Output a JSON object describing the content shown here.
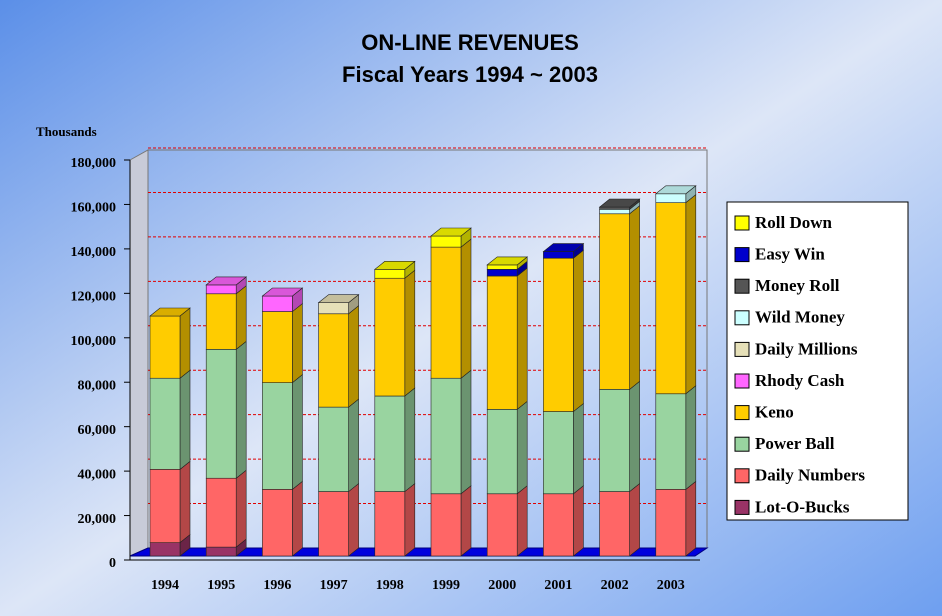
{
  "chart_data": {
    "type": "bar",
    "stacked": true,
    "title": "ON-LINE REVENUES",
    "subtitle": "Fiscal Years 1994 ~ 2003",
    "y_label": "Thousands",
    "categories": [
      "1994",
      "1995",
      "1996",
      "1997",
      "1998",
      "1999",
      "2000",
      "2001",
      "2002",
      "2003"
    ],
    "ylim": [
      0,
      180000
    ],
    "yticks": [
      0,
      {
        "value": 20000,
        "label": "20,000"
      },
      {
        "value": 40000,
        "label": "40,000"
      },
      {
        "value": 60000,
        "label": "60,000"
      },
      {
        "value": 80000,
        "label": "80,000"
      },
      {
        "value": 100000,
        "label": "100,000"
      },
      {
        "value": 120000,
        "label": "120,000"
      },
      {
        "value": 140000,
        "label": "140,000"
      },
      {
        "value": 160000,
        "label": "160,000"
      },
      {
        "value": 180000,
        "label": "180,000"
      }
    ],
    "grid": true,
    "legend": "right",
    "series": [
      {
        "name": "Lot-O-Bucks",
        "color": "#993366",
        "values": [
          6000,
          4000,
          0,
          0,
          0,
          0,
          0,
          0,
          0,
          0
        ]
      },
      {
        "name": "Daily Numbers",
        "color": "#ff6666",
        "values": [
          33000,
          31000,
          30000,
          29000,
          29000,
          28000,
          28000,
          28000,
          29000,
          30000
        ]
      },
      {
        "name": "Power Ball",
        "color": "#99d4a0",
        "values": [
          41000,
          58000,
          48000,
          38000,
          43000,
          52000,
          38000,
          37000,
          46000,
          43000
        ]
      },
      {
        "name": "Keno",
        "color": "#ffcc00",
        "values": [
          28000,
          25000,
          32000,
          42000,
          53000,
          59000,
          60000,
          69000,
          79000,
          86000
        ]
      },
      {
        "name": "Rhody Cash",
        "color": "#ff66ff",
        "values": [
          0,
          4000,
          7000,
          0,
          0,
          0,
          0,
          0,
          0,
          0
        ]
      },
      {
        "name": "Daily Millions",
        "color": "#e6e0b8",
        "values": [
          0,
          0,
          0,
          5000,
          0,
          0,
          0,
          0,
          0,
          0
        ]
      },
      {
        "name": "Wild Money",
        "color": "#ccffff",
        "values": [
          0,
          0,
          0,
          0,
          0,
          0,
          0,
          0,
          2000,
          4000
        ]
      },
      {
        "name": "Money Roll",
        "color": "#555555",
        "values": [
          0,
          0,
          0,
          0,
          0,
          0,
          0,
          0,
          1000,
          0
        ]
      },
      {
        "name": "Easy Win",
        "color": "#0000cc",
        "values": [
          0,
          0,
          0,
          0,
          0,
          0,
          3000,
          3000,
          0,
          0
        ]
      },
      {
        "name": "Roll Down",
        "color": "#ffff00",
        "values": [
          0,
          0,
          0,
          0,
          4000,
          5000,
          2000,
          0,
          0,
          0
        ]
      }
    ]
  }
}
